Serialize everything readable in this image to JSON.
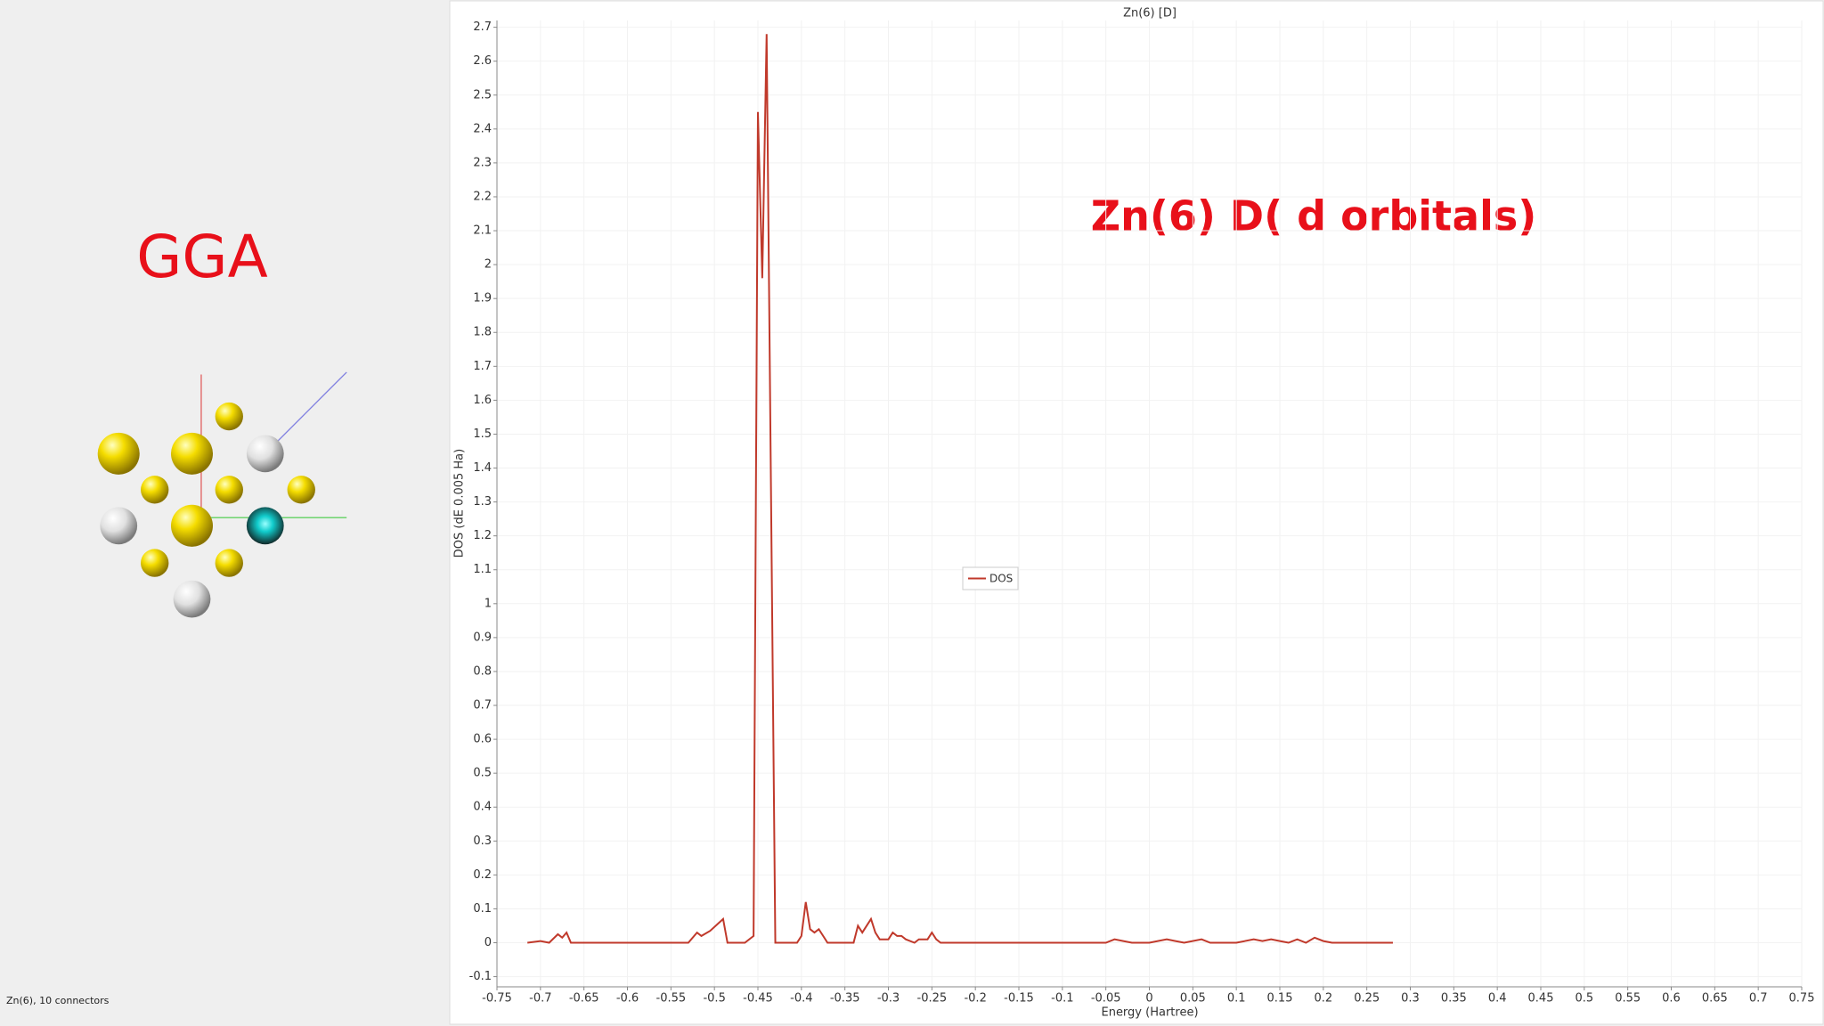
{
  "chart_data": {
    "type": "line",
    "title": "Zn(6) [D]",
    "x_label": "Energy (Hartree)",
    "y_label": "DOS (dE 0.005 Ha)",
    "annotation": "Zn(6) D( d orbitals)",
    "method_label": "GGA",
    "status_text": "Zn(6), 10 connectors",
    "grid": true,
    "legend": "center",
    "xlim": [
      -0.75,
      0.75
    ],
    "ylim": [
      -0.13,
      2.72
    ],
    "xticks": [
      -0.75,
      -0.7,
      -0.65,
      -0.6,
      -0.55,
      -0.5,
      -0.45,
      -0.4,
      -0.35,
      -0.3,
      -0.25,
      -0.2,
      -0.15,
      -0.1,
      -0.05,
      0,
      0.05,
      0.1,
      0.15,
      0.2,
      0.25,
      0.3,
      0.35,
      0.4,
      0.45,
      0.5,
      0.55,
      0.6,
      0.65,
      0.7,
      0.75
    ],
    "yticks": [
      -0.1,
      0,
      0.1,
      0.2,
      0.3,
      0.4,
      0.5,
      0.6,
      0.7,
      0.8,
      0.9,
      1,
      1.1,
      1.2,
      1.3,
      1.4,
      1.5,
      1.6,
      1.7,
      1.8,
      1.9,
      2,
      2.1,
      2.2,
      2.3,
      2.4,
      2.5,
      2.6,
      2.7
    ],
    "x": [
      -0.715,
      -0.7,
      -0.69,
      -0.68,
      -0.675,
      -0.67,
      -0.665,
      -0.6,
      -0.53,
      -0.52,
      -0.515,
      -0.505,
      -0.49,
      -0.485,
      -0.465,
      -0.455,
      -0.45,
      -0.445,
      -0.44,
      -0.43,
      -0.405,
      -0.4,
      -0.395,
      -0.39,
      -0.385,
      -0.38,
      -0.375,
      -0.37,
      -0.34,
      -0.335,
      -0.33,
      -0.32,
      -0.315,
      -0.31,
      -0.3,
      -0.295,
      -0.29,
      -0.285,
      -0.28,
      -0.27,
      -0.265,
      -0.255,
      -0.25,
      -0.245,
      -0.24,
      -0.05,
      -0.04,
      -0.03,
      -0.02,
      0,
      0.02,
      0.03,
      0.04,
      0.06,
      0.07,
      0.1,
      0.12,
      0.13,
      0.14,
      0.15,
      0.16,
      0.17,
      0.18,
      0.19,
      0.2,
      0.21,
      0.28
    ],
    "series": [
      {
        "name": "DOS",
        "color": "#c0392b",
        "values": [
          0,
          0.005,
          0,
          0.025,
          0.015,
          0.03,
          0,
          0,
          0,
          0.03,
          0.02,
          0.035,
          0.07,
          0,
          0,
          0.02,
          2.45,
          1.96,
          2.68,
          0,
          0,
          0.02,
          0.12,
          0.04,
          0.03,
          0.04,
          0.02,
          0,
          0,
          0.05,
          0.03,
          0.07,
          0.03,
          0.01,
          0.01,
          0.03,
          0.02,
          0.02,
          0.01,
          0,
          0.01,
          0.01,
          0.03,
          0.01,
          0,
          0,
          0.01,
          0.005,
          0,
          0,
          0.01,
          0.005,
          0,
          0.01,
          0,
          0,
          0.01,
          0.005,
          0.01,
          0.005,
          0,
          0.01,
          0,
          0.015,
          0.005,
          0,
          0
        ]
      }
    ]
  }
}
